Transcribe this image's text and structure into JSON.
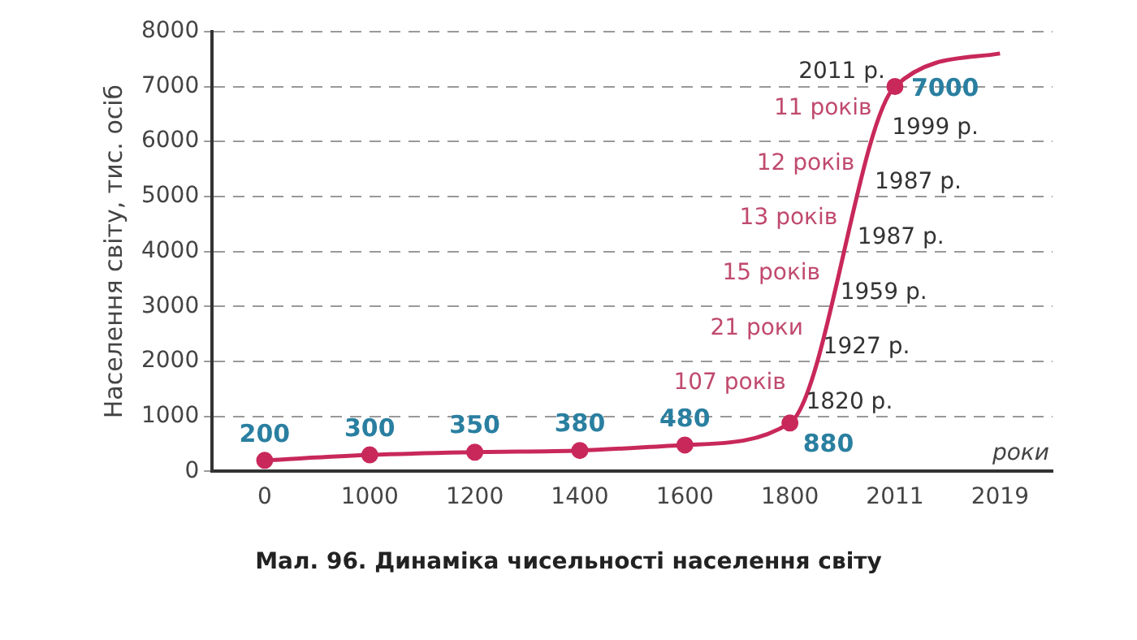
{
  "chart_data": {
    "type": "line",
    "title": "Мал. 96. Динаміка чисельності населення світу",
    "xlabel": "роки",
    "ylabel": "Населення світу, тис. осіб",
    "categories": [
      "0",
      "1000",
      "1200",
      "1400",
      "1600",
      "1800",
      "2011",
      "2019"
    ],
    "series": [
      {
        "color": "#c8285a",
        "values": [
          200,
          300,
          350,
          380,
          480,
          880,
          7000,
          7600
        ],
        "value_labels": [
          "200",
          "300",
          "350",
          "380",
          "480",
          "880",
          "7000",
          null
        ]
      }
    ],
    "ylim": [
      0,
      8000
    ],
    "yticks": [
      0,
      1000,
      2000,
      3000,
      4000,
      5000,
      6000,
      7000,
      8000
    ],
    "grid": "y",
    "marker": "circle",
    "line_style": "solid",
    "legend": false,
    "annotations": [
      {
        "text": "2011 р.",
        "x": "2011",
        "y": 7000
      },
      "11 років",
      "1999 р.",
      "12 років",
      "1987 р.",
      "13 років",
      "1987 р.",
      "15 років",
      "1959 р.",
      "21 роки",
      "1927 р.",
      "107 років",
      "1820 р."
    ]
  }
}
